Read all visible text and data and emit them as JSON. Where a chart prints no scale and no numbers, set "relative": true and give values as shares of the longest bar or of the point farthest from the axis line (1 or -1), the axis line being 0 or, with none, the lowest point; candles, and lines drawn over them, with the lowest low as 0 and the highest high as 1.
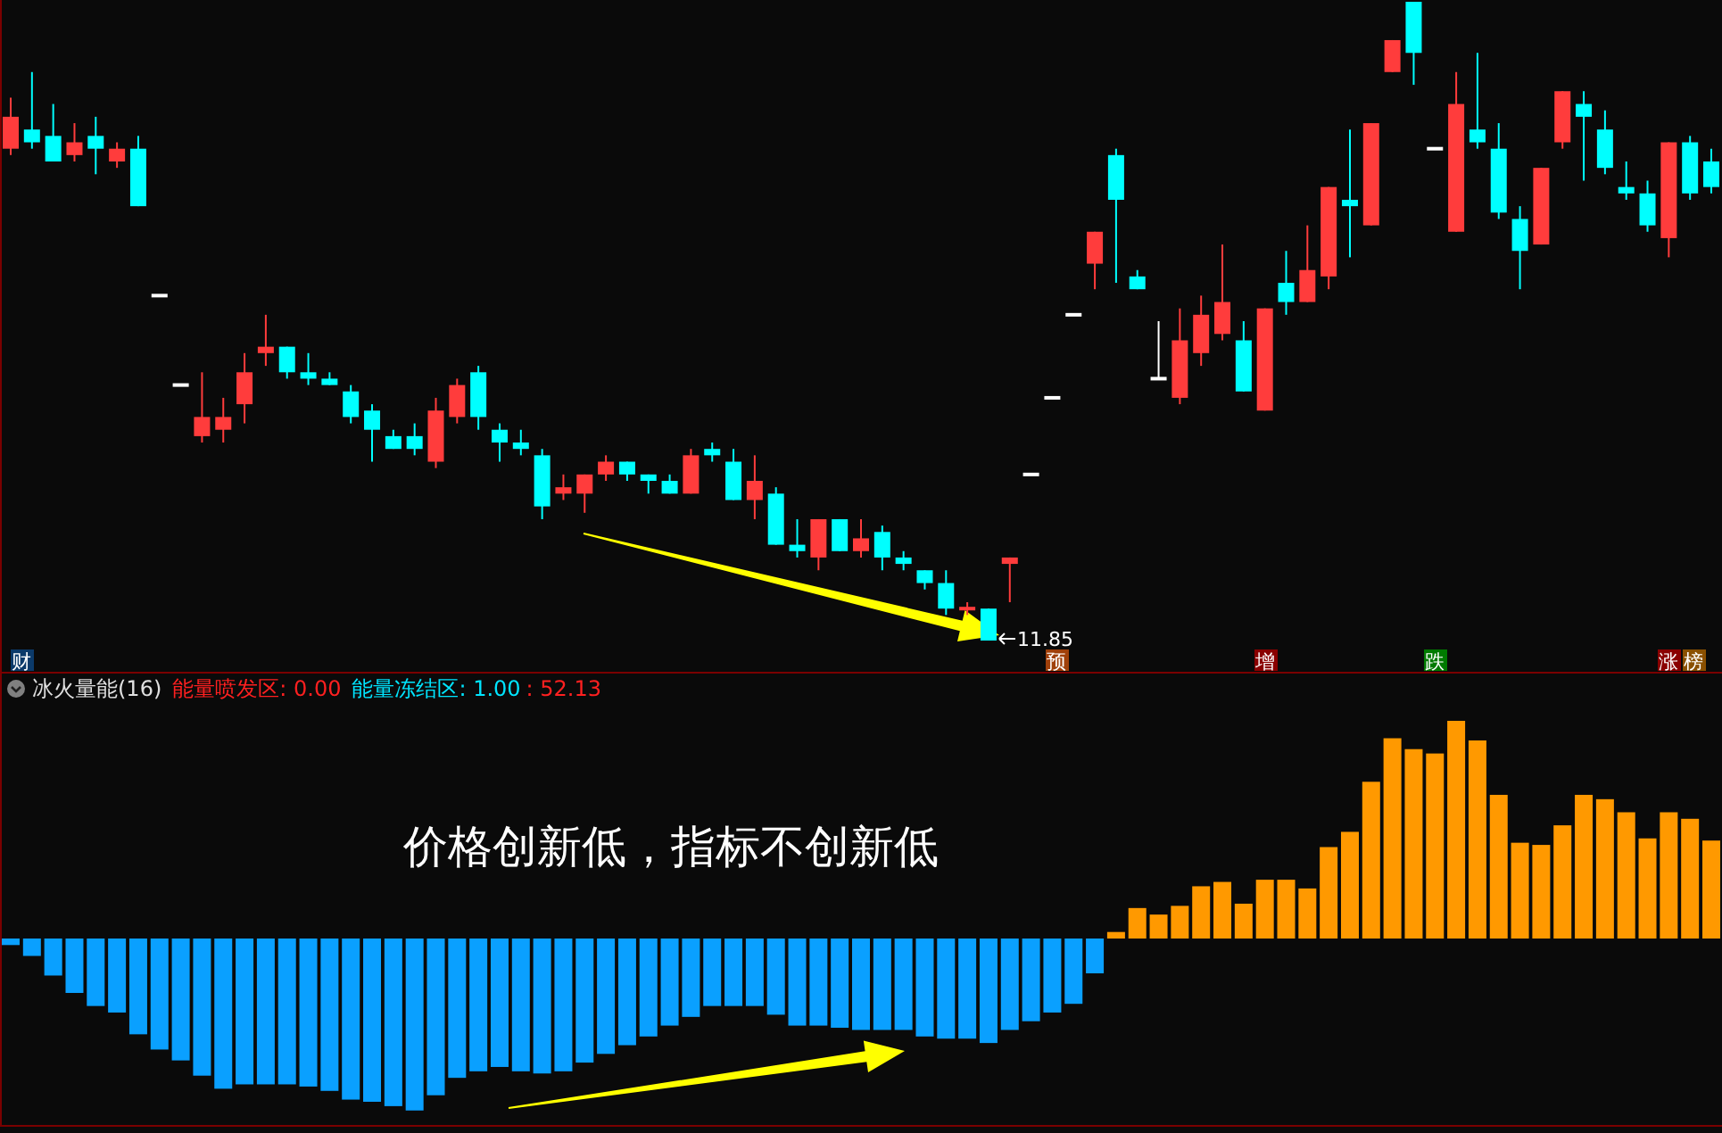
{
  "chart_data": [
    {
      "type": "candlestick",
      "relative": true,
      "categories": [
        null,
        null,
        null,
        null,
        null,
        null,
        null,
        null,
        null,
        null,
        null,
        null,
        null,
        null,
        null,
        null,
        null,
        null,
        null,
        null,
        null,
        null,
        null,
        null,
        null,
        null,
        null,
        null,
        null,
        null,
        null,
        null,
        null,
        null,
        null,
        null,
        null,
        null,
        null,
        null,
        null,
        null,
        null,
        null,
        null,
        null,
        null,
        null,
        null,
        null,
        null,
        null,
        null,
        null,
        null,
        null,
        null,
        null,
        null,
        null,
        null,
        null,
        null,
        null,
        null,
        null,
        null,
        null,
        null,
        null,
        null,
        null,
        null,
        null,
        null,
        null,
        null,
        null,
        null,
        null,
        null
      ],
      "ohlc": [
        [
          0.77,
          0.85,
          0.76,
          0.82
        ],
        [
          0.8,
          0.89,
          0.77,
          0.78
        ],
        [
          0.79,
          0.84,
          0.75,
          0.75
        ],
        [
          0.76,
          0.81,
          0.75,
          0.78
        ],
        [
          0.79,
          0.82,
          0.73,
          0.77
        ],
        [
          0.75,
          0.78,
          0.74,
          0.77
        ],
        [
          0.77,
          0.79,
          0.68,
          0.68
        ],
        [
          0.54,
          0.54,
          0.54,
          0.54
        ],
        [
          0.4,
          0.4,
          0.4,
          0.4
        ],
        [
          0.32,
          0.42,
          0.31,
          0.35
        ],
        [
          0.33,
          0.38,
          0.31,
          0.35
        ],
        [
          0.37,
          0.45,
          0.34,
          0.42
        ],
        [
          0.45,
          0.51,
          0.43,
          0.46
        ],
        [
          0.46,
          0.46,
          0.41,
          0.42
        ],
        [
          0.42,
          0.45,
          0.4,
          0.41
        ],
        [
          0.41,
          0.42,
          0.4,
          0.4
        ],
        [
          0.39,
          0.4,
          0.34,
          0.35
        ],
        [
          0.36,
          0.37,
          0.28,
          0.33
        ],
        [
          0.32,
          0.33,
          0.3,
          0.3
        ],
        [
          0.32,
          0.34,
          0.29,
          0.3
        ],
        [
          0.28,
          0.38,
          0.27,
          0.36
        ],
        [
          0.35,
          0.41,
          0.34,
          0.4
        ],
        [
          0.42,
          0.43,
          0.33,
          0.35
        ],
        [
          0.33,
          0.34,
          0.28,
          0.31
        ],
        [
          0.31,
          0.33,
          0.29,
          0.3
        ],
        [
          0.29,
          0.3,
          0.19,
          0.21
        ],
        [
          0.23,
          0.26,
          0.22,
          0.24
        ],
        [
          0.23,
          0.26,
          0.2,
          0.26
        ],
        [
          0.26,
          0.29,
          0.25,
          0.28
        ],
        [
          0.28,
          0.28,
          0.25,
          0.26
        ],
        [
          0.26,
          0.26,
          0.23,
          0.25
        ],
        [
          0.25,
          0.26,
          0.23,
          0.23
        ],
        [
          0.23,
          0.3,
          0.23,
          0.29
        ],
        [
          0.3,
          0.31,
          0.28,
          0.29
        ],
        [
          0.28,
          0.3,
          0.22,
          0.22
        ],
        [
          0.22,
          0.29,
          0.19,
          0.25
        ],
        [
          0.23,
          0.24,
          0.15,
          0.15
        ],
        [
          0.15,
          0.19,
          0.13,
          0.14
        ],
        [
          0.13,
          0.19,
          0.11,
          0.19
        ],
        [
          0.19,
          0.19,
          0.14,
          0.14
        ],
        [
          0.14,
          0.19,
          0.13,
          0.16
        ],
        [
          0.17,
          0.18,
          0.11,
          0.13
        ],
        [
          0.13,
          0.14,
          0.11,
          0.12
        ],
        [
          0.11,
          0.11,
          0.08,
          0.09
        ],
        [
          0.09,
          0.11,
          0.04,
          0.05
        ],
        [
          0.05,
          0.06,
          0.04,
          0.05
        ],
        [
          0.05,
          0.05,
          0,
          0
        ],
        [
          0.12,
          0.13,
          0.06,
          0.13
        ],
        [
          0.26,
          0.26,
          0.26,
          0.26
        ],
        [
          0.38,
          0.38,
          0.38,
          0.38
        ],
        [
          0.51,
          0.51,
          0.51,
          0.51
        ],
        [
          0.59,
          0.64,
          0.55,
          0.64
        ],
        [
          0.76,
          0.77,
          0.56,
          0.69
        ],
        [
          0.57,
          0.58,
          0.55,
          0.55
        ],
        [
          0.41,
          0.5,
          0.41,
          0.41
        ],
        [
          0.38,
          0.52,
          0.37,
          0.47
        ],
        [
          0.45,
          0.54,
          0.43,
          0.51
        ],
        [
          0.48,
          0.62,
          0.47,
          0.53
        ],
        [
          0.47,
          0.5,
          0.39,
          0.39
        ],
        [
          0.36,
          0.52,
          0.36,
          0.52
        ],
        [
          0.56,
          0.61,
          0.51,
          0.53
        ],
        [
          0.53,
          0.65,
          0.53,
          0.58
        ],
        [
          0.57,
          0.71,
          0.55,
          0.71
        ],
        [
          0.69,
          0.8,
          0.6,
          0.68
        ],
        [
          0.65,
          0.81,
          0.65,
          0.81
        ],
        [
          0.89,
          0.94,
          0.89,
          0.94
        ],
        [
          1,
          1,
          0.87,
          0.92
        ],
        [
          0.77,
          0.77,
          0.77,
          0.77
        ],
        [
          0.64,
          0.89,
          0.64,
          0.84
        ],
        [
          0.8,
          0.92,
          0.77,
          0.78
        ],
        [
          0.77,
          0.81,
          0.66,
          0.67
        ],
        [
          0.66,
          0.68,
          0.55,
          0.61
        ],
        [
          0.62,
          0.74,
          0.62,
          0.74
        ],
        [
          0.78,
          0.86,
          0.77,
          0.86
        ],
        [
          0.84,
          0.86,
          0.72,
          0.82
        ],
        [
          0.8,
          0.83,
          0.73,
          0.74
        ],
        [
          0.71,
          0.75,
          0.69,
          0.7
        ],
        [
          0.7,
          0.72,
          0.64,
          0.65
        ],
        [
          0.63,
          0.78,
          0.6,
          0.78
        ],
        [
          0.78,
          0.79,
          0.69,
          0.7
        ],
        [
          0.75,
          0.77,
          0.7,
          0.71
        ]
      ],
      "colors": [
        "#ff3c3c",
        "#00ffff",
        "#00ffff",
        "#ff3c3c",
        "#00ffff",
        "#ff3c3c",
        "#00ffff",
        "#ffffff",
        "#ffffff",
        "#ff3c3c",
        "#ff3c3c",
        "#ff3c3c",
        "#ff3c3c",
        "#00ffff",
        "#00ffff",
        "#00ffff",
        "#00ffff",
        "#00ffff",
        "#00ffff",
        "#00ffff",
        "#ff3c3c",
        "#ff3c3c",
        "#00ffff",
        "#00ffff",
        "#00ffff",
        "#00ffff",
        "#ff3c3c",
        "#ff3c3c",
        "#ff3c3c",
        "#00ffff",
        "#00ffff",
        "#00ffff",
        "#ff3c3c",
        "#00ffff",
        "#00ffff",
        "#ff3c3c",
        "#00ffff",
        "#00ffff",
        "#ff3c3c",
        "#00ffff",
        "#ff3c3c",
        "#00ffff",
        "#00ffff",
        "#00ffff",
        "#00ffff",
        "#ff3c3c",
        "#00ffff",
        "#ff3c3c",
        "#ffffff",
        "#ffffff",
        "#ffffff",
        "#ff3c3c",
        "#00ffff",
        "#00ffff",
        "#ffffff",
        "#ff3c3c",
        "#ff3c3c",
        "#ff3c3c",
        "#00ffff",
        "#ff3c3c",
        "#00ffff",
        "#ff3c3c",
        "#ff3c3c",
        "#00ffff",
        "#ff3c3c",
        "#ff3c3c",
        "#00ffff",
        "#ffffff",
        "#ff3c3c",
        "#00ffff",
        "#00ffff",
        "#00ffff",
        "#ff3c3c",
        "#ff3c3c",
        "#00ffff",
        "#00ffff",
        "#00ffff",
        "#00ffff",
        "#ff3c3c",
        "#00ffff",
        "#00ffff"
      ],
      "annotations": [
        "11.85",
        "财",
        "预",
        "增",
        "跌",
        "涨",
        "榜"
      ]
    },
    {
      "type": "bar",
      "relative": true,
      "title": "冰火量能(16)",
      "categories": [
        null,
        null,
        null,
        null,
        null,
        null,
        null,
        null,
        null,
        null,
        null,
        null,
        null,
        null,
        null,
        null,
        null,
        null,
        null,
        null,
        null,
        null,
        null,
        null,
        null,
        null,
        null,
        null,
        null,
        null,
        null,
        null,
        null,
        null,
        null,
        null,
        null,
        null,
        null,
        null,
        null,
        null,
        null,
        null,
        null,
        null,
        null,
        null,
        null,
        null,
        null,
        null,
        null,
        null,
        null,
        null,
        null,
        null,
        null,
        null,
        null,
        null,
        null,
        null,
        null,
        null,
        null,
        null,
        null,
        null,
        null,
        null,
        null,
        null,
        null,
        null,
        null,
        null,
        null,
        null,
        null
      ],
      "series": [
        {
          "color": "#0aa0ff",
          "values": [
            -0.03,
            -0.08,
            -0.17,
            -0.25,
            -0.31,
            -0.34,
            -0.44,
            -0.51,
            -0.56,
            -0.63,
            -0.69,
            -0.67,
            -0.67,
            -0.67,
            -0.68,
            -0.7,
            -0.74,
            -0.75,
            -0.77,
            -0.79,
            -0.72,
            -0.64,
            -0.61,
            -0.59,
            -0.61,
            -0.62,
            -0.61,
            -0.57,
            -0.53,
            -0.49,
            -0.45,
            -0.4,
            -0.36,
            -0.31,
            -0.31,
            -0.31,
            -0.35,
            -0.4,
            -0.4,
            -0.41,
            -0.42,
            -0.42,
            -0.42,
            -0.45,
            -0.46,
            -0.46,
            -0.48,
            -0.42,
            -0.38,
            -0.34,
            -0.3,
            -0.16,
            null,
            null,
            null,
            null,
            null,
            null,
            null,
            null,
            null,
            null,
            null,
            null,
            null,
            null,
            null,
            null,
            null,
            null,
            null,
            null,
            null,
            null,
            null,
            null,
            null,
            null,
            null,
            null,
            null
          ]
        },
        {
          "color": "#ff9900",
          "values": [
            null,
            null,
            null,
            null,
            null,
            null,
            null,
            null,
            null,
            null,
            null,
            null,
            null,
            null,
            null,
            null,
            null,
            null,
            null,
            null,
            null,
            null,
            null,
            null,
            null,
            null,
            null,
            null,
            null,
            null,
            null,
            null,
            null,
            null,
            null,
            null,
            null,
            null,
            null,
            null,
            null,
            null,
            null,
            null,
            null,
            null,
            null,
            null,
            null,
            null,
            null,
            null,
            0.03,
            0.14,
            0.11,
            0.15,
            0.24,
            0.26,
            0.16,
            0.27,
            0.27,
            0.23,
            0.42,
            0.49,
            0.72,
            0.92,
            0.87,
            0.85,
            1,
            0.91,
            0.66,
            0.44,
            0.43,
            0.52,
            0.66,
            0.64,
            0.58,
            0.46,
            0.58,
            0.55,
            0.45
          ]
        }
      ],
      "annotations": [
        "能量喷发区: 0.00",
        "能量冻结区: 1.00",
        ": 52.13",
        "价格创新低，指标不创新低"
      ]
    }
  ]
}
